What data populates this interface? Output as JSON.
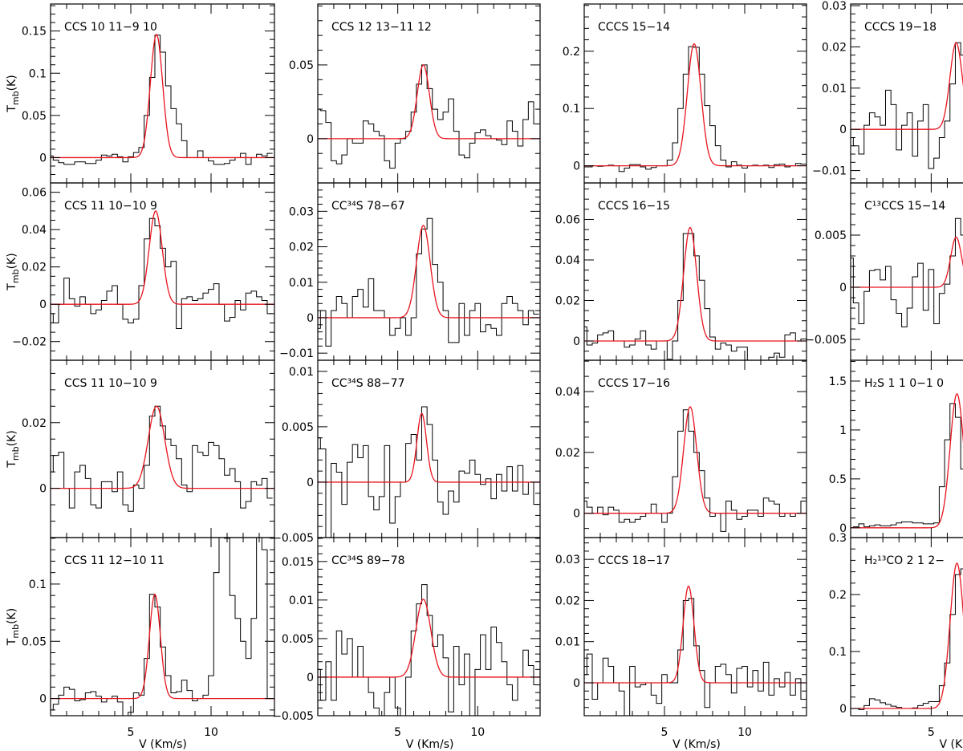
{
  "figure": {
    "data_color": "#000000",
    "fit_color": "#e8141e",
    "channel_width": 0.3333
  },
  "chart_data": [
    {
      "type": "line",
      "title": "CCS 10 11−9 10",
      "xlim": [
        0,
        13.95
      ],
      "ylim": [
        -0.03,
        0.182
      ],
      "yticks": [
        0,
        0.05,
        0.1,
        0.15
      ],
      "yminor": 0.01,
      "ylabel": {
        "main": "T",
        "sub": "mb",
        "unit": "(K)"
      },
      "xlabel": "",
      "xtick_labels": [],
      "fit": {
        "amplitude": 0.146,
        "center": 6.6,
        "fwhm": 0.9
      },
      "values": [
        0.002,
        -0.003,
        -0.006,
        -0.008,
        -0.008,
        -0.005,
        -0.005,
        -0.007,
        -0.007,
        -0.003,
        0.003,
        0.002,
        0.004,
        0.001,
        -0.005,
        0.001,
        0.006,
        0.012,
        0.05,
        0.095,
        0.145,
        0.125,
        0.085,
        0.058,
        0.04,
        0.02,
        0.0,
        0.0,
        0.008,
        0.0,
        -0.004,
        -0.008,
        -0.008,
        -0.007,
        -0.003,
        0.0,
        0.005,
        -0.008,
        0.0,
        0.004,
        0.002,
        0.005
      ]
    },
    {
      "type": "line",
      "title": "CCS 11 10−10 9",
      "xlim": [
        0,
        13.95
      ],
      "ylim": [
        -0.03,
        0.065
      ],
      "yticks": [
        -0.02,
        0,
        0.02,
        0.04,
        0.06
      ],
      "yminor": 0.005,
      "ylabel": {
        "main": "T",
        "sub": "mb",
        "unit": "(K)"
      },
      "xlabel": "",
      "xtick_labels": [],
      "fit": {
        "amplitude": 0.05,
        "center": 6.55,
        "fwhm": 0.95
      },
      "values": [
        -0.005,
        -0.01,
        0.0,
        0.014,
        0.003,
        -0.001,
        0.004,
        0.0,
        -0.005,
        -0.003,
        0.002,
        0.007,
        0.01,
        0.0,
        -0.008,
        -0.01,
        -0.008,
        0.01,
        0.035,
        0.046,
        0.042,
        0.03,
        0.02,
        0.023,
        -0.013,
        0.003,
        0.004,
        0.002,
        0.003,
        0.006,
        0.008,
        0.011,
        0.0,
        -0.009,
        -0.007,
        0.002,
        -0.003,
        0.006,
        0.007,
        0.004,
        0.002,
        -0.005
      ]
    },
    {
      "type": "line",
      "title": "CCS 11 10−10 9",
      "xlim": [
        0,
        13.95
      ],
      "ylim": [
        -0.015,
        0.039
      ],
      "yticks": [
        0,
        0.02
      ],
      "yminor": 0.005,
      "ylabel": {
        "main": "T",
        "sub": "mb",
        "unit": "(K)"
      },
      "xlabel": "",
      "xtick_labels": [],
      "fit": {
        "amplitude": 0.025,
        "center": 6.6,
        "fwhm": 1.2
      },
      "values": [
        0.005,
        0.01,
        0.011,
        0.0,
        -0.006,
        0.005,
        0.007,
        0.003,
        -0.005,
        -0.006,
        0.002,
        0.002,
        -0.001,
        0.005,
        -0.005,
        -0.007,
        0.001,
        0.0,
        0.007,
        0.022,
        0.025,
        0.019,
        0.015,
        0.013,
        0.009,
        0.001,
        -0.001,
        0.013,
        0.011,
        0.01,
        0.014,
        0.013,
        0.009,
        0.004,
        0.006,
        0.002,
        -0.006,
        -0.004,
        0.002,
        0.001,
        0.003,
        -0.003
      ]
    },
    {
      "type": "line",
      "title": "CCS 11 12−10 11",
      "xlim": [
        0,
        13.95
      ],
      "ylim": [
        -0.015,
        0.1406
      ],
      "yticks": [
        0,
        0.05,
        0.1
      ],
      "yminor": 0.01,
      "ylabel": {
        "main": "T",
        "sub": "mb",
        "unit": "(K)"
      },
      "xlabel": "V (Km/s)",
      "xtick_labels": [
        "5",
        "10"
      ],
      "fit": {
        "amplitude": 0.091,
        "center": 6.5,
        "fwhm": 0.8
      },
      "values": [
        -0.01,
        -0.005,
        0.003,
        0.01,
        0.008,
        -0.002,
        -0.001,
        0.005,
        0.006,
        0.002,
        -0.003,
        0.0,
        0.002,
        -0.003,
        -0.015,
        -0.012,
        0.005,
        0.003,
        0.035,
        0.091,
        0.08,
        0.045,
        0.02,
        0.005,
        0.006,
        0.016,
        0.007,
        -0.002,
        0.0,
        0.003,
        0.02,
        0.11,
        0.18,
        0.14,
        0.09,
        0.07,
        0.05,
        0.035,
        0.07,
        0.16,
        0.13,
        0.0
      ]
    },
    {
      "type": "line",
      "title": "CCS 12 13−11 12",
      "xlim": [
        0,
        13.9
      ],
      "ylim": [
        -0.03,
        0.0913
      ],
      "yticks": [
        0,
        0.05
      ],
      "yminor": 0.01,
      "ylabel": null,
      "xlabel": "",
      "xtick_labels": [],
      "fit": {
        "amplitude": 0.05,
        "center": 6.6,
        "fwhm": 0.9
      },
      "values": [
        0.02,
        0.019,
        0.011,
        -0.015,
        -0.017,
        -0.011,
        0.0,
        -0.003,
        -0.003,
        0.012,
        0.01,
        0.005,
        0.002,
        -0.015,
        -0.02,
        -0.003,
        0.0,
        0.005,
        0.018,
        0.037,
        0.05,
        0.034,
        0.02,
        0.013,
        0.018,
        0.027,
        0.005,
        -0.011,
        -0.013,
        -0.003,
        0.004,
        0.006,
        0.002,
        0.0,
        -0.001,
        -0.004,
        0.012,
        0.005,
        -0.005,
        0.013,
        0.025,
        0.01
      ]
    },
    {
      "type": "line",
      "title": "CC³⁴S 78−67",
      "xlim": [
        0,
        13.9
      ],
      "ylim": [
        -0.012,
        0.038
      ],
      "yticks": [
        -0.01,
        0,
        0.01,
        0.02,
        0.03
      ],
      "yminor": 0.002,
      "ylabel": null,
      "xlabel": "",
      "xtick_labels": [],
      "fit": {
        "amplitude": 0.026,
        "center": 6.6,
        "fwhm": 1.0
      },
      "values": [
        -0.003,
        0.002,
        -0.008,
        0.002,
        0.006,
        0.004,
        0.0,
        0.006,
        0.008,
        0.003,
        0.011,
        0.002,
        0.002,
        0.0,
        -0.005,
        -0.003,
        0.0,
        -0.005,
        0.0,
        0.018,
        0.025,
        0.028,
        0.015,
        0.01,
        0.002,
        -0.007,
        -0.007,
        0.004,
        -0.005,
        0.002,
        0.004,
        -0.004,
        -0.002,
        -0.003,
        -0.005,
        0.004,
        0.006,
        0.004,
        0.002,
        -0.002,
        0.002,
        0.001
      ]
    },
    {
      "type": "line",
      "title": "CC³⁴S 88−77",
      "xlim": [
        0,
        13.9
      ],
      "ylim": [
        -0.005,
        0.011
      ],
      "yticks": [
        -0.005,
        0,
        0.005,
        0.01
      ],
      "yminor": 0.001,
      "ylabel": null,
      "xlabel": "",
      "xtick_labels": [],
      "fit": {
        "amplitude": 0.0062,
        "center": 6.5,
        "fwhm": 0.7
      },
      "values": [
        0.004,
        0.003,
        -0.006,
        0.0017,
        0.0009,
        -0.002,
        0.0018,
        0.0034,
        0.0022,
        0.0033,
        -0.0013,
        -0.0025,
        -0.0013,
        0.0033,
        -0.0037,
        -0.0013,
        0.0,
        0.0035,
        0.0043,
        0.002,
        0.0068,
        0.0052,
        0.002,
        -0.0018,
        -0.0029,
        -0.0008,
        -0.0018,
        0.001,
        0.0008,
        0.002,
        0.0007,
        -0.0002,
        0.0003,
        -0.0015,
        0.0007,
        -0.0008,
        0.0014,
        -0.0008,
        0.0015,
        -0.0011,
        0.0,
        -0.002
      ]
    },
    {
      "type": "line",
      "title": "CC³⁴S 89−78",
      "xlim": [
        0,
        13.9
      ],
      "ylim": [
        -0.005,
        0.0181
      ],
      "yticks": [
        -0.005,
        0,
        0.005,
        0.01,
        0.015
      ],
      "yminor": 0.001,
      "ylabel": null,
      "xlabel": "V (Km/s)",
      "xtick_labels": [
        "5",
        "10"
      ],
      "fit": {
        "amplitude": 0.0101,
        "center": 6.6,
        "fwhm": 1.1
      },
      "values": [
        0.001,
        -0.003,
        0.002,
        -0.003,
        0.006,
        0.003,
        0.005,
        0.0,
        0.004,
        0.0,
        -0.002,
        -0.004,
        -0.007,
        -0.002,
        0.0,
        -0.004,
        -0.007,
        0.0,
        0.006,
        0.0095,
        0.012,
        0.008,
        0.004,
        0.0055,
        0.0025,
        -0.0045,
        0.004,
        -0.001,
        0.003,
        -0.006,
        0.001,
        0.0055,
        0.001,
        0.0065,
        0.0045,
        0.002,
        -0.001,
        -0.003,
        0.0,
        0.0035,
        0.0015,
        -0.001
      ]
    },
    {
      "type": "line",
      "title": "CCCS 15−14",
      "xlim": [
        0,
        13.85
      ],
      "ylim": [
        -0.03,
        0.2825
      ],
      "yticks": [
        0,
        0.1,
        0.2
      ],
      "yminor": 0.02,
      "ylabel": null,
      "xlabel": "",
      "xtick_labels": [],
      "fit": {
        "amplitude": 0.213,
        "center": 6.85,
        "fwhm": 1.0
      },
      "values": [
        -0.002,
        -0.002,
        0.0,
        -0.001,
        0.0,
        0.001,
        0.0,
        -0.01,
        -0.004,
        0.002,
        0.002,
        -0.002,
        -0.006,
        -0.003,
        0.0,
        0.0,
        0.01,
        0.04,
        0.1,
        0.16,
        0.208,
        0.207,
        0.16,
        0.105,
        0.07,
        0.035,
        0.01,
        -0.002,
        0.007,
        0.001,
        -0.004,
        0.0,
        0.001,
        0.0,
        0.001,
        -0.003,
        0.002,
        0.003,
        -0.002,
        0.0,
        0.004,
        0.003
      ]
    },
    {
      "type": "line",
      "title": "CCCS 16−15",
      "xlim": [
        0,
        13.85
      ],
      "ylim": [
        -0.0095,
        0.078
      ],
      "yticks": [
        0,
        0.02,
        0.04,
        0.06
      ],
      "yminor": 0.005,
      "ylabel": null,
      "xlabel": "",
      "xtick_labels": [],
      "fit": {
        "amplitude": 0.056,
        "center": 6.6,
        "fwhm": 0.95
      },
      "values": [
        0.007,
        -0.002,
        -0.001,
        0.003,
        0.004,
        0.005,
        0.0,
        0.0,
        -0.003,
        -0.002,
        0.001,
        0.005,
        -0.002,
        -0.004,
        0.0,
        0.0,
        -0.009,
        0.0,
        0.02,
        0.053,
        0.053,
        0.042,
        0.03,
        0.016,
        0.002,
        -0.004,
        -0.001,
        -0.002,
        -0.005,
        -0.003,
        -0.003,
        -0.01,
        -0.01,
        -0.012,
        -0.01,
        -0.008,
        -0.006,
        -0.008,
        0.003,
        0.004,
        0.0,
        0.001
      ]
    },
    {
      "type": "line",
      "title": "CCCS 17−16",
      "xlim": [
        0,
        13.85
      ],
      "ylim": [
        -0.008,
        0.0503
      ],
      "yticks": [
        0,
        0.02,
        0.04
      ],
      "yminor": 0.005,
      "ylabel": null,
      "xlabel": "",
      "xtick_labels": [],
      "fit": {
        "amplitude": 0.035,
        "center": 6.6,
        "fwhm": 0.95
      },
      "values": [
        0.004,
        0.002,
        0.0,
        0.002,
        -0.0005,
        0.002,
        0.001,
        -0.003,
        -0.002,
        -0.003,
        -0.002,
        -0.001,
        0.0,
        0.003,
        0.0,
        -0.003,
        0.0,
        0.012,
        0.027,
        0.034,
        0.027,
        0.02,
        0.014,
        0.005,
        -0.001,
        0.0,
        -0.006,
        0.004,
        0.001,
        -0.002,
        -0.001,
        0.001,
        0.001,
        -0.001,
        0.005,
        0.004,
        0.003,
        -0.001,
        0.0,
        -0.001,
        0.0,
        0.004
      ]
    },
    {
      "type": "line",
      "title": "CCCS 18−17",
      "xlim": [
        0,
        13.85
      ],
      "ylim": [
        -0.008,
        0.0353
      ],
      "yticks": [
        0,
        0.01,
        0.02,
        0.03
      ],
      "yminor": 0.002,
      "ylabel": null,
      "xlabel": "V (Km/s)",
      "xtick_labels": [
        "5",
        "10"
      ],
      "fit": {
        "amplitude": 0.0235,
        "center": 6.5,
        "fwhm": 0.8
      },
      "values": [
        0.002,
        0.007,
        -0.004,
        0.0,
        0.006,
        0.004,
        0.0,
        -0.002,
        -0.01,
        0.004,
        -0.001,
        -0.0005,
        0.0,
        -0.003,
        -0.005,
        0.002,
        0.0,
        0.0,
        0.008,
        0.02,
        0.0205,
        0.009,
        0.003,
        -0.006,
        0.0,
        0.004,
        0.0045,
        0.002,
        -0.0025,
        0.0035,
        0.004,
        -0.001,
        0.003,
        -0.002,
        0.005,
        -0.003,
        0.001,
        -0.001,
        0.0025,
        -0.003,
        0.001,
        -0.004
      ]
    },
    {
      "type": "line",
      "title": "CCCS 19−18",
      "xlim": [
        0,
        13.9
      ],
      "ylim": [
        -0.013,
        0.0304
      ],
      "yticks": [
        -0.01,
        0,
        0.01,
        0.02,
        0.03
      ],
      "yminor": 0.002,
      "ylabel": null,
      "xlabel": "",
      "xtick_labels": [],
      "fit": {
        "amplitude": 0.021,
        "center": 6.55,
        "fwhm": 0.9
      },
      "values": [
        -0.002,
        -0.004,
        -0.006,
        0.001,
        0.004,
        0.003,
        0.001,
        0.0095,
        0.006,
        -0.005,
        0.001,
        0.004,
        -0.0065,
        0.002,
        0.006,
        -0.0095,
        -0.007,
        -0.002,
        0.002,
        0.011,
        0.021,
        0.018,
        0.005
      ]
    },
    {
      "type": "line",
      "title": "C¹³CCS 15−14",
      "xlim": [
        0,
        13.9
      ],
      "ylim": [
        -0.007,
        0.01
      ],
      "yticks": [
        -0.005,
        0,
        0.005
      ],
      "yminor": 0.001,
      "ylabel": null,
      "xlabel": "",
      "xtick_labels": [],
      "fit": {
        "amplitude": 0.0048,
        "center": 6.55,
        "fwhm": 0.8
      },
      "values": [
        0.0028,
        -0.0015,
        -0.0035,
        -0.0004,
        0.0016,
        0.0017,
        0.0007,
        0.002,
        -0.0012,
        -0.0025,
        -0.0038,
        -0.002,
        0.001,
        0.0023,
        -0.0022,
        0.0017,
        -0.0035,
        -0.0006,
        0.0003,
        0.003,
        0.0066,
        0.005,
        -0.0008
      ]
    },
    {
      "type": "line",
      "title": "H₂S 1 1 0−1 0",
      "xlim": [
        0,
        13.9
      ],
      "ylim": [
        -0.1,
        1.713
      ],
      "yticks": [
        0,
        0.5,
        1,
        1.5
      ],
      "yminor": 0.1,
      "ylabel": null,
      "xlabel": "",
      "xtick_labels": [],
      "fit": {
        "amplitude": 1.37,
        "center": 6.6,
        "fwhm": 1.0
      },
      "values": [
        0.0,
        0.01,
        0.04,
        0.01,
        0.02,
        0.03,
        0.02,
        0.02,
        0.03,
        0.05,
        0.06,
        0.06,
        0.05,
        0.05,
        0.04,
        0.04,
        0.05,
        0.42,
        0.9,
        1.27,
        1.13,
        0.6
      ]
    },
    {
      "type": "line",
      "title": "H₂¹³CO 2 1 2−",
      "xlim": [
        0,
        13.9
      ],
      "ylim": [
        -0.0127,
        0.3
      ],
      "yticks": [
        0,
        0.1,
        0.2,
        0.3
      ],
      "yminor": 0.02,
      "ylabel": null,
      "xlabel": "V (Km/s)",
      "xtick_labels": [
        "5"
      ],
      "fit": {
        "amplitude": 0.255,
        "center": 6.6,
        "fwhm": 1.0
      },
      "values": [
        0.0,
        0.0,
        -0.002,
        0.005,
        0.017,
        0.015,
        0.01,
        0.007,
        0.004,
        0.002,
        0.0,
        0.0,
        0.001,
        0.005,
        0.009,
        0.012,
        0.012,
        0.04,
        0.08,
        0.165,
        0.235,
        0.245,
        0.19
      ]
    }
  ]
}
